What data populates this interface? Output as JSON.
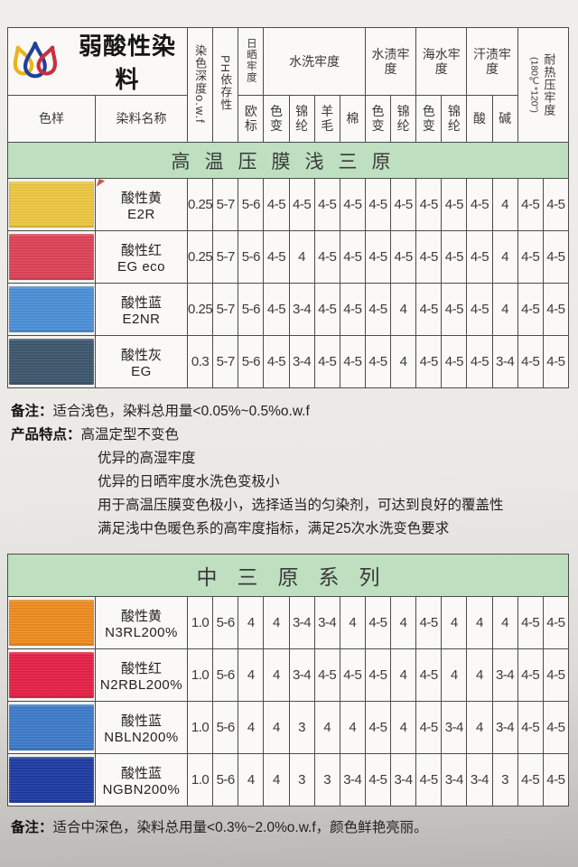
{
  "brand": {
    "title": "弱酸性染料"
  },
  "logo": {
    "drop_colors": [
      "#e8b51e",
      "#20409a",
      "#c7303f"
    ]
  },
  "columns": {
    "sample": "色样",
    "dye_name": "染料名称",
    "depth": "染色深度o.w.f",
    "ph": "PH依存性",
    "light": "日晒牢度",
    "light_sub": "欧标",
    "wash": "水洗牢度",
    "wash_subs": [
      "色变",
      "锦纶",
      "羊毛",
      "棉"
    ],
    "stain": "水渍牢度",
    "stain_subs": [
      "色变",
      "锦纶"
    ],
    "sea": "海水牢度",
    "sea_subs": [
      "色变",
      "锦纶"
    ],
    "sweat": "汗渍牢度",
    "sweat_subs": [
      "酸",
      "碱"
    ],
    "heat": "耐热压牢度",
    "heat_sub": "(180℃*120\")"
  },
  "table1": {
    "banner": "高温压膜浅三原",
    "rows": [
      {
        "swatch": "#eec840",
        "name": "酸性黄",
        "code": "E2R",
        "values": [
          "0.25",
          "5-7",
          "5-6",
          "4-5",
          "4-5",
          "4-5",
          "4-5",
          "4-5",
          "4-5",
          "4-5",
          "4-5",
          "4-5",
          "4",
          "4-5",
          "4-5"
        ]
      },
      {
        "swatch": "#de4156",
        "name": "酸性红",
        "code": "EG eco",
        "values": [
          "0.25",
          "5-7",
          "5-6",
          "4-5",
          "4",
          "4-5",
          "4-5",
          "4-5",
          "4-5",
          "4-5",
          "4-5",
          "4-5",
          "4",
          "4-5",
          "4-5"
        ]
      },
      {
        "swatch": "#4a8fd7",
        "name": "酸性蓝",
        "code": "E2NR",
        "values": [
          "0.25",
          "5-7",
          "5-6",
          "4-5",
          "3-4",
          "4-5",
          "4-5",
          "4-5",
          "4",
          "4-5",
          "4-5",
          "4-5",
          "4",
          "4-5",
          "4-5"
        ]
      },
      {
        "swatch": "#3b566c",
        "name": "酸性灰",
        "code": "EG",
        "values": [
          "0.3",
          "5-7",
          "5-6",
          "4-5",
          "3-4",
          "4-5",
          "4-5",
          "4-5",
          "4",
          "4-5",
          "4-5",
          "4-5",
          "3-4",
          "4-5",
          "4-5"
        ]
      }
    ],
    "notes": {
      "remark_label": "备注：",
      "remark": "适合浅色，染料总用量<0.05%~0.5%o.w.f",
      "features_label": "产品特点：",
      "features": [
        "高温定型不变色",
        "优异的高湿牢度",
        "优异的日晒牢度水洗色变极小",
        "用于高温压膜变色极小，选择适当的匀染剂，可达到良好的覆盖性",
        "满足浅中色暖色系的高牢度指标，满足25次水洗变色要求"
      ]
    }
  },
  "table2": {
    "banner": "中三原系列",
    "rows": [
      {
        "swatch": "#ef8c1f",
        "name": "酸性黄",
        "code": "N3RL200%",
        "values": [
          "1.0",
          "5-6",
          "4",
          "4",
          "3-4",
          "3-4",
          "4",
          "4-5",
          "4",
          "4-5",
          "4",
          "4",
          "4",
          "4-5",
          "4-5"
        ]
      },
      {
        "swatch": "#e62045",
        "name": "酸性红",
        "code": "N2RBL200%",
        "values": [
          "1.0",
          "5-6",
          "4",
          "4",
          "3-4",
          "4-5",
          "4-5",
          "4-5",
          "4",
          "4-5",
          "4",
          "4",
          "3-4",
          "4-5",
          "4-5"
        ]
      },
      {
        "swatch": "#3d7bca",
        "name": "酸性蓝",
        "code": "NBLN200%",
        "values": [
          "1.0",
          "5-6",
          "4",
          "4",
          "3",
          "4",
          "4",
          "4-5",
          "4",
          "4-5",
          "3-4",
          "4",
          "3-4",
          "4-5",
          "4-5"
        ]
      },
      {
        "swatch": "#1c3aa4",
        "name": "酸性蓝",
        "code": "NGBN200%",
        "values": [
          "1.0",
          "5-6",
          "4",
          "4",
          "3",
          "3",
          "3-4",
          "4-5",
          "3-4",
          "4-5",
          "3-4",
          "3-4",
          "3",
          "4-5",
          "4-5"
        ]
      }
    ],
    "note_label": "备注：",
    "note": "适合中深色，染料总用量<0.3%~2.0%o.w.f，颜色鲜艳亮丽。"
  }
}
